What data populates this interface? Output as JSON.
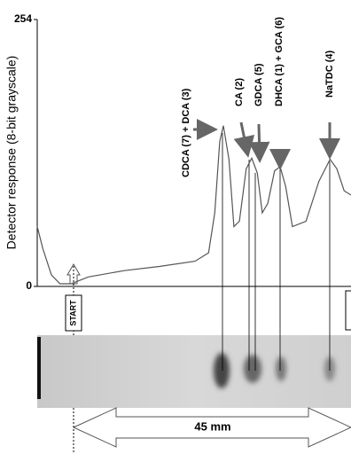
{
  "chart_data": {
    "type": "line",
    "y_label": "Detector response (8-bit grayscale)",
    "x": [
      -5.9,
      -5.0,
      -3.6,
      -2.2,
      -0.4,
      2.4,
      8.2,
      13.9,
      19.7,
      21.9,
      22.9,
      23.7,
      24.3,
      25.2,
      26.0,
      26.9,
      28.0,
      28.9,
      29.8,
      30.6,
      31.5,
      32.6,
      33.5,
      34.4,
      35.5,
      37.7,
      39.8,
      41.6,
      42.7,
      43.9,
      45.0
    ],
    "series": [
      {
        "color": "#555555",
        "values": [
          57,
          36,
          11,
          2.5,
          2.5,
          9,
          15,
          19,
          24,
          32,
          70,
          138,
          153,
          121,
          57,
          62,
          112,
          122,
          108,
          70,
          79,
          110,
          114,
          95,
          57,
          62,
          100,
          121,
          112,
          91,
          87
        ]
      }
    ],
    "xlim": [
      -5.9,
      45
    ],
    "ylim": [
      0,
      254
    ],
    "yticks": [
      0,
      254
    ],
    "annotations": [
      "CDCA (7) + DCA (3)",
      "CA (2)",
      "GDCA (5)",
      "DHCA (1) + GCA (6)",
      "NaTDC (4)"
    ],
    "start_label": "START",
    "distance_label": "45 mm"
  }
}
